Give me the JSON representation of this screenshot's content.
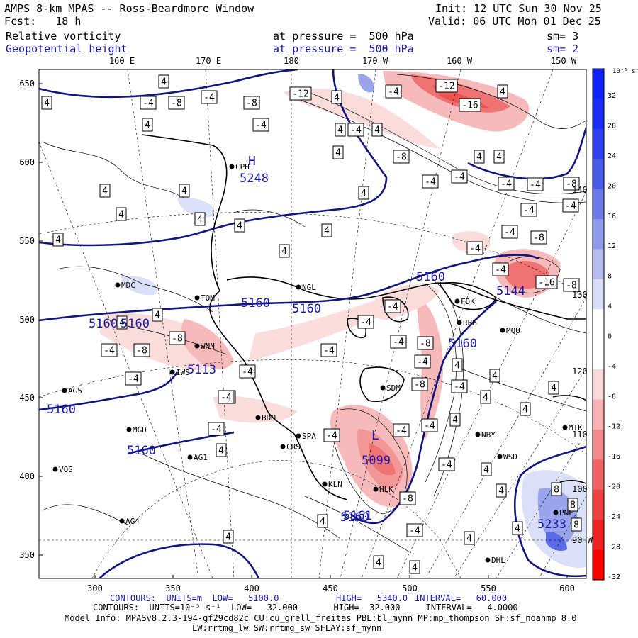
{
  "header": {
    "title": "AMPS 8-km MPAS -- Ross-Beardmore Window",
    "forecast": "Fcst:   18 h",
    "init": "Init: 12 UTC Sun 30 Nov 25",
    "valid": "Valid: 06 UTC Mon 01 Dec 25",
    "field1": {
      "name": "Relative vorticity",
      "level": "at pressure =  500 hPa",
      "sm": "sm= 3"
    },
    "field2": {
      "name": "Geopotential height",
      "level": "at pressure =  500 hPa",
      "sm": "sm= 2"
    }
  },
  "longitude_labels_top": [
    "160 E",
    "170 E",
    "180",
    "170 W",
    "160 W",
    "150 W"
  ],
  "longitude_labels_right": [
    "140 W",
    "130 W",
    "120 W",
    "110 W",
    "100 W",
    "90 W"
  ],
  "y_axis_ticks": [
    "650",
    "600",
    "550",
    "500",
    "450",
    "400",
    "350"
  ],
  "x_axis_ticks": [
    "300",
    "350",
    "400",
    "450",
    "500",
    "550",
    "600"
  ],
  "colorbar": {
    "unit": "10⁻⁵ s⁻¹",
    "labels": [
      "32",
      "28",
      "24",
      "20",
      "16",
      "12",
      "8",
      "4",
      "0",
      "-4",
      "-8",
      "-12",
      "-16",
      "-20",
      "-24",
      "-28",
      "-32"
    ],
    "colors": [
      "#1020ff",
      "#1c2cf8",
      "#2f40ee",
      "#4a5ce6",
      "#6a7ae4",
      "#8e9be8",
      "#b4bdf0",
      "#d8ddf8",
      "#ffffff",
      "#ffffff",
      "#fbd9d9",
      "#f6b3b3",
      "#f28b8b",
      "#ee6464",
      "#ea4040",
      "#ee2222",
      "#ff0000"
    ]
  },
  "stations": [
    {
      "name": "CPH"
    },
    {
      "name": "MDC"
    },
    {
      "name": "TOM"
    },
    {
      "name": "NGL"
    },
    {
      "name": "WNN"
    },
    {
      "name": "IWS"
    },
    {
      "name": "AG5"
    },
    {
      "name": "MGD"
    },
    {
      "name": "AG1"
    },
    {
      "name": "VOS"
    },
    {
      "name": "AG4"
    },
    {
      "name": "BDM"
    },
    {
      "name": "SPA"
    },
    {
      "name": "CRS"
    },
    {
      "name": "KLN"
    },
    {
      "name": "HLK"
    },
    {
      "name": "SDM"
    },
    {
      "name": "FDK"
    },
    {
      "name": "RBB"
    },
    {
      "name": "MQU"
    },
    {
      "name": "NBY"
    },
    {
      "name": "MTK"
    },
    {
      "name": "WSD"
    },
    {
      "name": "PNE"
    },
    {
      "name": "DHL"
    }
  ],
  "height_contour_labels": [
    "5248",
    "5160",
    "5160",
    "5160",
    "5160",
    "5160",
    "5160",
    "5160",
    "5160",
    "5160",
    "5144",
    "5113",
    "5099",
    "5161",
    "5233"
  ],
  "height_centers": [
    "H",
    "L"
  ],
  "footer": {
    "line1_a": "CONTOURS:  UNITS=m  LOW=   5100.0",
    "line1_b": "HIGH=   5340.0",
    "line1_c": "INTERVAL=   60.000",
    "line2": "CONTOURS:  UNITS=10⁻⁵ s⁻¹  LOW=  -32.000       HIGH=  32.000     INTERVAL=   4.0000",
    "line3": "Model Info: MPASv8.2.3-194-gf29cd82c CU:cu_grell_freitas PBL:bl_mynn MP:mp_thompson SF:sf_noahmp 8.0",
    "line4": "LW:rrtmg_lw SW:rrtmg_sw SFLAY:sf_mynn"
  }
}
